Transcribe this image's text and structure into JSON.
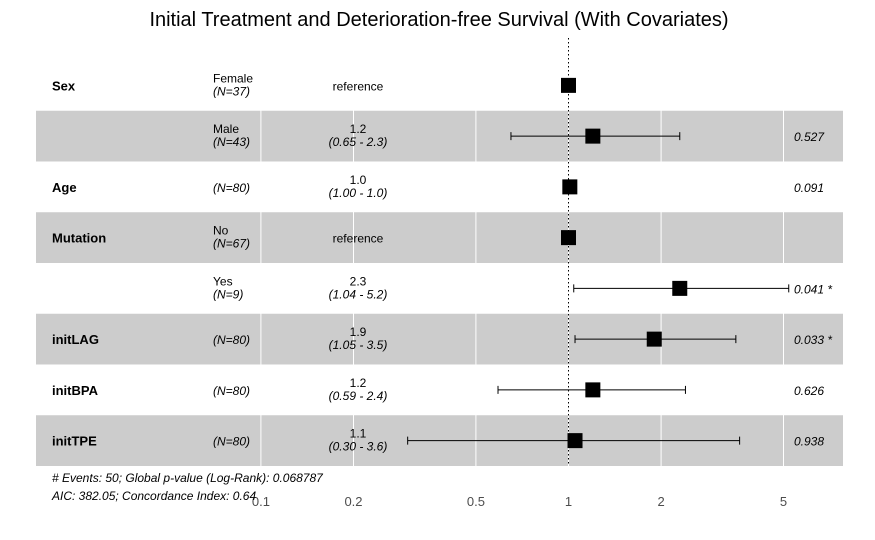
{
  "chart_data": {
    "type": "forest",
    "title": "Initial Treatment and Deterioration-free Survival (With Covariates)",
    "x_scale": "log",
    "xlim": [
      0.1,
      7
    ],
    "xticks": [
      "0.1",
      "0.2",
      "0.5",
      "1",
      "2",
      "5"
    ],
    "reference_line": 1,
    "rows": [
      {
        "variable": "Sex",
        "level": "Female",
        "n": "(N=37)",
        "estimate_text": "reference",
        "ci_text": "",
        "hr": 1.0,
        "lo": null,
        "hi": null,
        "p": "",
        "shaded": false
      },
      {
        "variable": "",
        "level": "Male",
        "n": "(N=43)",
        "estimate_text": "1.2",
        "ci_text": "(0.65 - 2.3)",
        "hr": 1.2,
        "lo": 0.65,
        "hi": 2.3,
        "p": "0.527",
        "shaded": true
      },
      {
        "variable": "Age",
        "level": "",
        "n": "(N=80)",
        "estimate_text": "1.0",
        "ci_text": "(1.00 - 1.0)",
        "hr": 1.01,
        "lo": 1.0,
        "hi": 1.03,
        "p": "0.091",
        "shaded": false
      },
      {
        "variable": "Mutation",
        "level": "No",
        "n": "(N=67)",
        "estimate_text": "reference",
        "ci_text": "",
        "hr": 1.0,
        "lo": null,
        "hi": null,
        "p": "",
        "shaded": true
      },
      {
        "variable": "",
        "level": "Yes",
        "n": "(N=9)",
        "estimate_text": "2.3",
        "ci_text": "(1.04 - 5.2)",
        "hr": 2.3,
        "lo": 1.04,
        "hi": 5.2,
        "p": "0.041 *",
        "shaded": false
      },
      {
        "variable": "initLAG",
        "level": "",
        "n": "(N=80)",
        "estimate_text": "1.9",
        "ci_text": "(1.05 - 3.5)",
        "hr": 1.9,
        "lo": 1.05,
        "hi": 3.5,
        "p": "0.033 *",
        "shaded": true
      },
      {
        "variable": "initBPA",
        "level": "",
        "n": "(N=80)",
        "estimate_text": "1.2",
        "ci_text": "(0.59 - 2.4)",
        "hr": 1.2,
        "lo": 0.59,
        "hi": 2.4,
        "p": "0.626",
        "shaded": false
      },
      {
        "variable": "initTPE",
        "level": "",
        "n": "(N=80)",
        "estimate_text": "1.1",
        "ci_text": "(0.30 - 3.6)",
        "hr": 1.05,
        "lo": 0.3,
        "hi": 3.6,
        "p": "0.938",
        "shaded": true
      }
    ],
    "footnote_1": "# Events: 50; Global p-value (Log-Rank): 0.068787",
    "footnote_2": "AIC: 382.05; Concordance Index: 0.64"
  }
}
